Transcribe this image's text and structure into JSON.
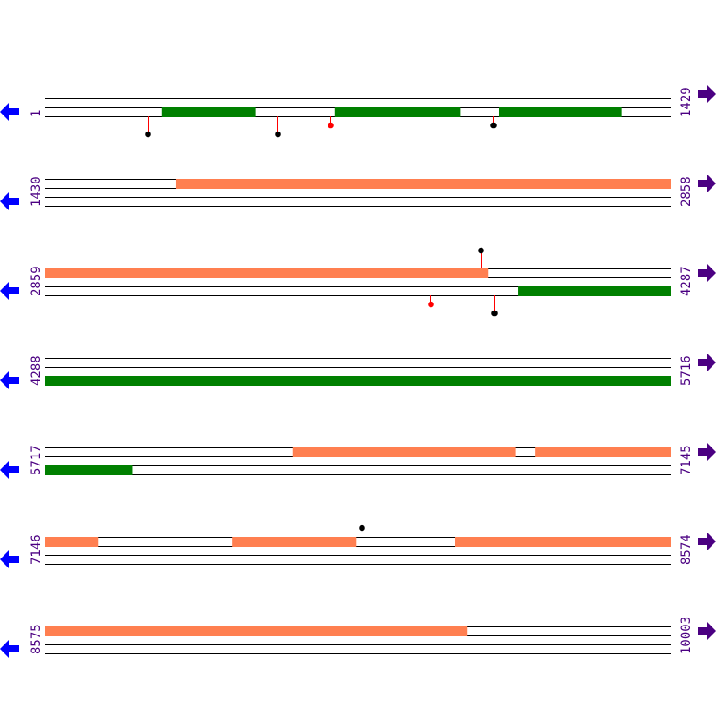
{
  "colors": {
    "orange_feature": "#ff7f50",
    "green_feature": "#008000",
    "track_line": "#000000",
    "pin_stem": "#ff0000",
    "pin_black": "#000000",
    "pin_red": "#ff0000",
    "left_arrow": "#0000ff",
    "right_arrow": "#4b0082",
    "label": "#4b0082"
  },
  "icons": {
    "left": "arrow-left-icon",
    "right": "arrow-right-icon"
  },
  "rows": [
    {
      "start": "1",
      "end": "1429",
      "features": [
        {
          "lane": 3,
          "color": "green",
          "from": 268,
          "to": 481
        },
        {
          "lane": 3,
          "color": "green",
          "from": 662,
          "to": 948
        },
        {
          "lane": 3,
          "color": "green",
          "from": 1036,
          "to": 1316
        }
      ],
      "pins": [
        {
          "pos": 236,
          "side": "below",
          "level": 2,
          "dot": "black"
        },
        {
          "pos": 532,
          "side": "below",
          "level": 2,
          "dot": "black"
        },
        {
          "pos": 652,
          "side": "below",
          "level": 1,
          "dot": "red"
        },
        {
          "pos": 1024,
          "side": "below",
          "level": 1,
          "dot": "black"
        }
      ]
    },
    {
      "start": "1430",
      "end": "2858",
      "features": [
        {
          "lane": 1,
          "color": "orange",
          "from": 1730,
          "to": 2858
        }
      ],
      "pins": []
    },
    {
      "start": "2859",
      "end": "4287",
      "features": [
        {
          "lane": 1,
          "color": "orange",
          "from": 2859,
          "to": 3869
        },
        {
          "lane": 3,
          "color": "green",
          "from": 3939,
          "to": 4287
        }
      ],
      "pins": [
        {
          "pos": 3853,
          "side": "above",
          "level": 2,
          "dot": "black"
        },
        {
          "pos": 3739,
          "side": "below",
          "level": 1,
          "dot": "red"
        },
        {
          "pos": 3884,
          "side": "below",
          "level": 2,
          "dot": "black"
        }
      ]
    },
    {
      "start": "4288",
      "end": "5716",
      "features": [
        {
          "lane": 3,
          "color": "green",
          "from": 4288,
          "to": 5716
        }
      ],
      "pins": []
    },
    {
      "start": "5717",
      "end": "7145",
      "features": [
        {
          "lane": 1,
          "color": "orange",
          "from": 6282,
          "to": 6789
        },
        {
          "lane": 1,
          "color": "orange",
          "from": 6836,
          "to": 7145
        },
        {
          "lane": 3,
          "color": "green",
          "from": 5717,
          "to": 5917
        }
      ],
      "pins": []
    },
    {
      "start": "7146",
      "end": "8574",
      "features": [
        {
          "lane": 1,
          "color": "orange",
          "from": 7146,
          "to": 7268
        },
        {
          "lane": 1,
          "color": "orange",
          "from": 7573,
          "to": 7856
        },
        {
          "lane": 1,
          "color": "orange",
          "from": 8081,
          "to": 8574
        }
      ],
      "pins": [
        {
          "pos": 7868,
          "side": "above",
          "level": 1,
          "dot": "black"
        }
      ]
    },
    {
      "start": "8575",
      "end": "10003",
      "features": [
        {
          "lane": 1,
          "color": "orange",
          "from": 8575,
          "to": 9538
        }
      ],
      "pins": []
    }
  ]
}
